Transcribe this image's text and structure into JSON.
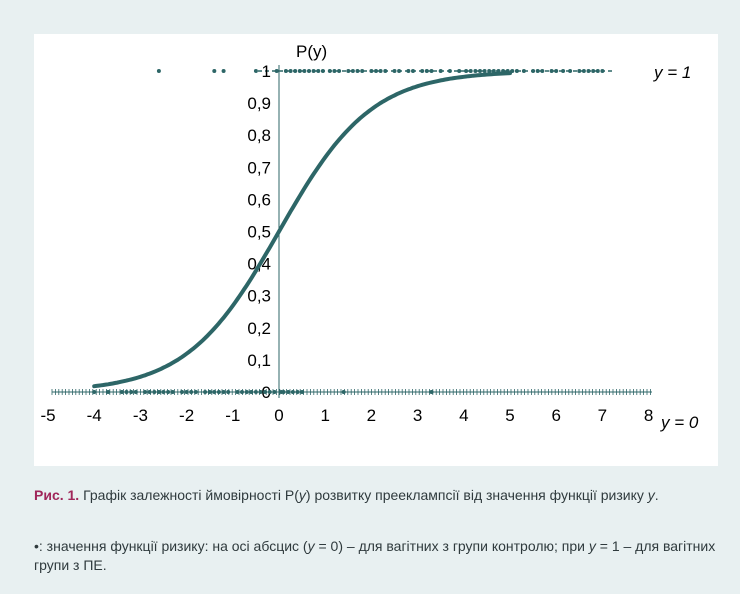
{
  "chart_data": {
    "type": "line",
    "title": "",
    "y_axis_title": "P(y)",
    "xlim": [
      -5,
      8
    ],
    "ylim": [
      0,
      1
    ],
    "x_ticks": [
      "-5",
      "-4",
      "-3",
      "-2",
      "-1",
      "0",
      "1",
      "2",
      "3",
      "4",
      "5",
      "6",
      "7",
      "8"
    ],
    "y_ticks": [
      "0",
      "0,1",
      "0,2",
      "0,3",
      "0,4",
      "0,5",
      "0,6",
      "0,7",
      "0,8",
      "0,9",
      "1"
    ],
    "curve": {
      "function": "logistic",
      "x": [
        -4,
        -3.5,
        -3,
        -2.5,
        -2,
        -1.5,
        -1,
        -0.5,
        0,
        0.5,
        1,
        1.5,
        2,
        2.5,
        3,
        3.5,
        4,
        4.5,
        5
      ],
      "y": [
        0.018,
        0.03,
        0.047,
        0.076,
        0.119,
        0.182,
        0.269,
        0.378,
        0.5,
        0.622,
        0.731,
        0.818,
        0.881,
        0.924,
        0.953,
        0.97,
        0.982,
        0.989,
        0.993
      ],
      "color": "#2d6667"
    },
    "series": [
      {
        "name": "y = 1",
        "y": 1,
        "x": [
          -2.6,
          -1.4,
          -1.2,
          -0.5,
          -0.05,
          0.15,
          0.25,
          0.35,
          0.45,
          0.55,
          0.65,
          0.75,
          0.85,
          0.95,
          1.1,
          1.2,
          1.3,
          1.5,
          1.6,
          1.7,
          1.8,
          2.0,
          2.1,
          2.2,
          2.3,
          2.5,
          2.6,
          2.8,
          2.9,
          3.1,
          3.2,
          3.3,
          3.5,
          3.7,
          3.9,
          4.05,
          4.15,
          4.25,
          4.35,
          4.45,
          4.55,
          4.65,
          4.75,
          4.85,
          4.95,
          5.05,
          5.15,
          5.3,
          5.5,
          5.6,
          5.7,
          5.9,
          6.0,
          6.15,
          6.3,
          6.5,
          6.6,
          6.7,
          6.8,
          6.9,
          7.0
        ]
      },
      {
        "name": "y = 0",
        "y": 0,
        "x": [
          -4.0,
          -3.7,
          -3.4,
          -3.3,
          -3.2,
          -3.1,
          -2.9,
          -2.8,
          -2.7,
          -2.6,
          -2.5,
          -2.4,
          -2.3,
          -2.1,
          -2.0,
          -1.9,
          -1.8,
          -1.6,
          -1.5,
          -1.4,
          -1.3,
          -1.2,
          -1.1,
          -0.9,
          -0.8,
          -0.7,
          -0.6,
          -0.5,
          -0.4,
          -0.3,
          -0.2,
          -0.1,
          0.05,
          0.1,
          0.2,
          0.3,
          0.4,
          0.5,
          1.4,
          3.3
        ]
      }
    ],
    "point_color": "#2d6667",
    "axis_color": "#2d6667"
  },
  "caption": {
    "figure_label": "Рис. 1.",
    "text_before_italic": " Графік залежності ймовірності P(",
    "italic_y": "y",
    "text_middle": ") розвитку прееклампсії від значення функції ризику ",
    "italic_y2": "y",
    "text_after": "."
  },
  "note": {
    "bullet": "•",
    "part1": ": значення функції ризику: на осі абсцис (",
    "y_a": "y",
    "part2": " = 0) – для вагітних з групи контролю; при ",
    "y_b": "y",
    "part3": " = 1 – для вагітних групи з ПЕ."
  }
}
